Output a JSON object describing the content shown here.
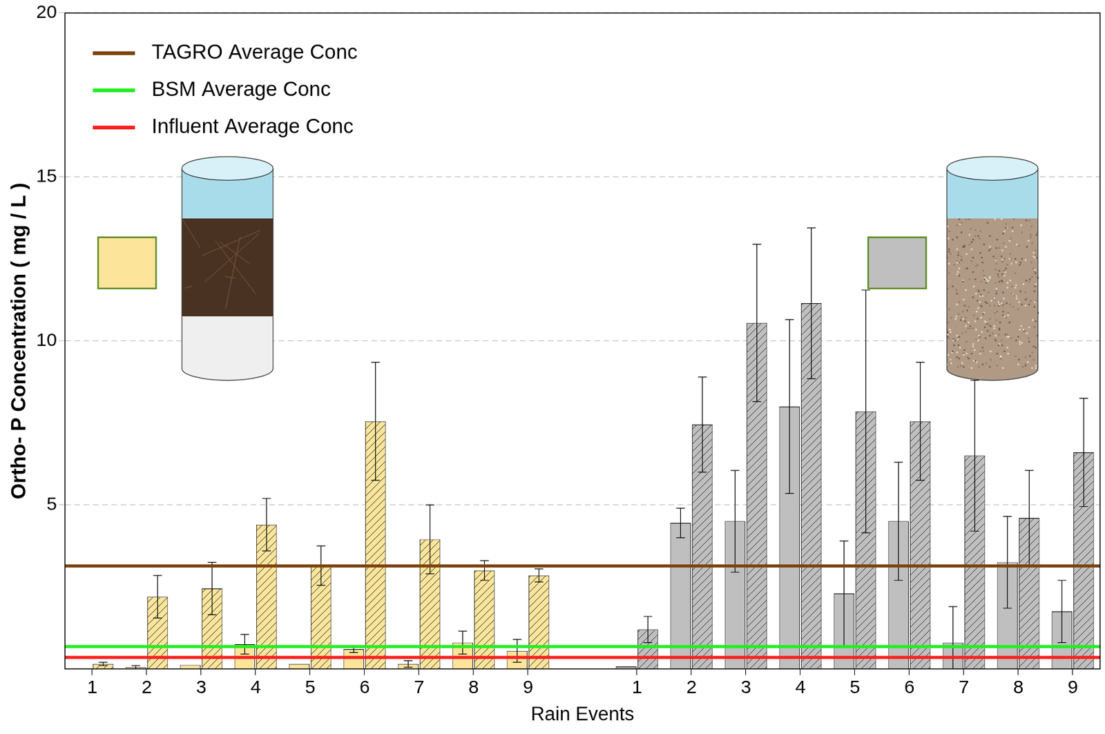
{
  "chart_data": {
    "type": "bar",
    "x_label": "Rain Events",
    "y_label": "Ortho- P Concentration ( mg / L )",
    "categories": [
      "1",
      "2",
      "3",
      "4",
      "5",
      "6",
      "7",
      "8",
      "9",
      null,
      "1",
      "2",
      "3",
      "4",
      "5",
      "6",
      "7",
      "8",
      "9"
    ],
    "ylim": [
      0,
      20
    ],
    "yticks": [
      5,
      10,
      15,
      20
    ],
    "grid": true,
    "legend": "upper left",
    "series": [
      {
        "values": [
          0.02,
          0.05,
          0.12,
          0.75,
          0.15,
          0.6,
          0.15,
          0.8,
          0.55,
          null,
          0.07,
          4.45,
          4.5,
          8.0,
          2.3,
          4.5,
          0.8,
          3.25,
          1.75
        ],
        "errors": [
          null,
          0.05,
          null,
          0.3,
          null,
          0.1,
          0.1,
          0.35,
          0.35,
          null,
          null,
          0.45,
          1.55,
          2.65,
          1.6,
          1.8,
          1.1,
          1.4,
          0.95
        ],
        "colors": [
          "#fde49b",
          "#fde49b",
          "#fde49b",
          "#fde49b",
          "#fde49b",
          "#fde49b",
          "#fde49b",
          "#fde49b",
          "#fde49b",
          "#fde49b",
          "#bfbfbf",
          "#bfbfbf",
          "#bfbfbf",
          "#bfbfbf",
          "#bfbfbf",
          "#bfbfbf",
          "#bfbfbf",
          "#bfbfbf",
          "#bfbfbf"
        ]
      },
      {
        "values": [
          0.15,
          2.2,
          2.45,
          4.4,
          3.15,
          7.55,
          3.95,
          3.0,
          2.85,
          null,
          1.2,
          7.45,
          10.55,
          11.15,
          7.85,
          7.55,
          6.5,
          4.6,
          6.6
        ],
        "errors": [
          0.05,
          0.65,
          0.8,
          0.8,
          0.6,
          1.8,
          1.05,
          0.3,
          0.2,
          null,
          0.4,
          1.45,
          2.4,
          2.3,
          3.7,
          1.8,
          2.3,
          1.45,
          1.65
        ],
        "colors": [
          "#fde49b",
          "#fde49b",
          "#fde49b",
          "#fde49b",
          "#fde49b",
          "#fde49b",
          "#fde49b",
          "#fde49b",
          "#fde49b",
          "#fde49b",
          "#bfbfbf",
          "#bfbfbf",
          "#bfbfbf",
          "#bfbfbf",
          "#bfbfbf",
          "#bfbfbf",
          "#bfbfbf",
          "#bfbfbf",
          "#bfbfbf"
        ]
      }
    ],
    "reference_lines": [
      {
        "name": "TAGRO Average Conc",
        "color": "#7f4410",
        "value": 3.14
      },
      {
        "name": "BSM Average Conc",
        "color": "#22ee22",
        "value": 0.68
      },
      {
        "name": "Influent Average Conc",
        "color": "#ff2020",
        "value": 0.35
      }
    ]
  }
}
